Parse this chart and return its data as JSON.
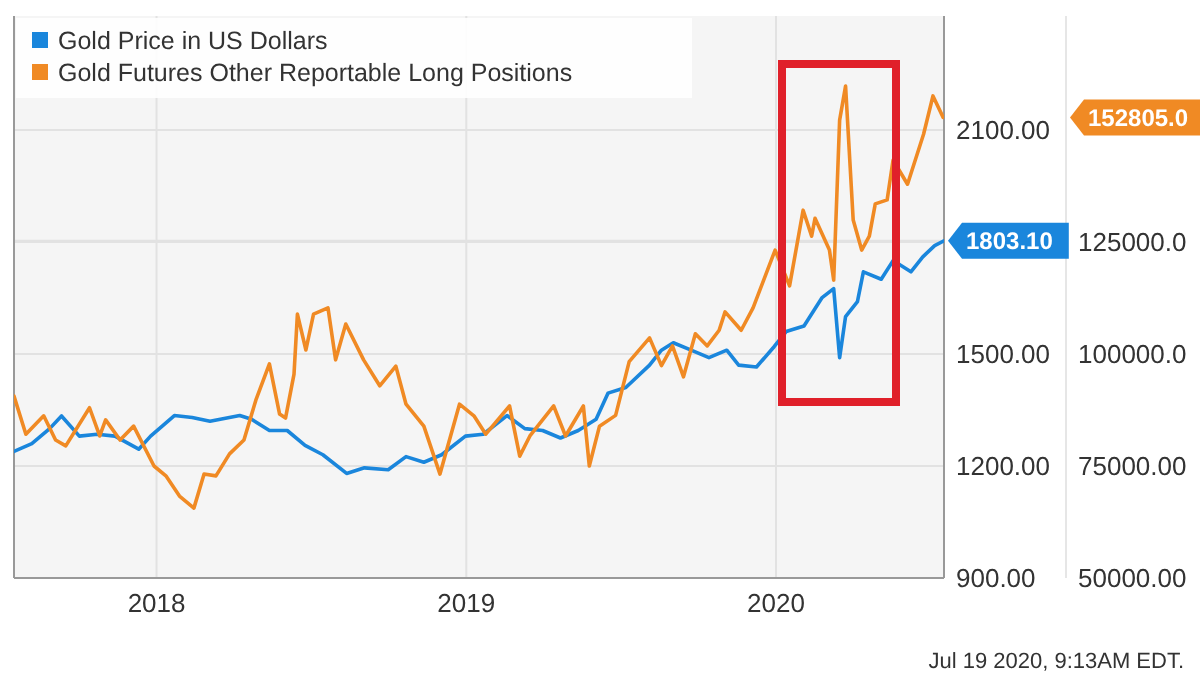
{
  "chart_data": {
    "type": "line",
    "xlim": [
      "2017-07-17",
      "2020-07-17"
    ],
    "xticks": [
      {
        "value": "2018-01-01",
        "label": "2018"
      },
      {
        "value": "2019-01-01",
        "label": "2019"
      },
      {
        "value": "2020-01-01",
        "label": "2020"
      }
    ],
    "ylim": [
      900,
      2405
    ],
    "yticks": [
      {
        "value": 900,
        "label": "900.00"
      },
      {
        "value": 1200,
        "label": "1200.00"
      },
      {
        "value": 1500,
        "label": "1500.00"
      },
      {
        "value": 1800,
        "label": null
      },
      {
        "value": 1803.1,
        "label": "1803.10"
      },
      {
        "value": 2100,
        "label": "2100.00"
      }
    ],
    "y2lim": [
      50000,
      175446
    ],
    "y2ticks": [
      {
        "value": 50000,
        "label": "50000.00"
      },
      {
        "value": 75000,
        "label": "75000.00"
      },
      {
        "value": 100000,
        "label": "100000.0"
      },
      {
        "value": 125000,
        "label": "125000.0"
      },
      {
        "value": 152805,
        "label": "152805.0"
      }
    ],
    "grid": true,
    "legend": "top left",
    "line_style": "solid",
    "marker": "none",
    "annotations": [
      "Jul 19 2020, 9:13AM EDT."
    ],
    "series": [
      {
        "name": "Gold Price in US Dollars",
        "color": "#1a86dc",
        "x": [
          "2017-07-17",
          "2017-08-07",
          "2017-08-28",
          "2017-09-11",
          "2017-10-02",
          "2017-10-23",
          "2017-11-13",
          "2017-12-11",
          "2017-12-25",
          "2018-01-22",
          "2018-02-12",
          "2018-03-05",
          "2018-04-09",
          "2018-04-23",
          "2018-05-14",
          "2018-06-04",
          "2018-06-25",
          "2018-07-16",
          "2018-08-13",
          "2018-09-03",
          "2018-10-01",
          "2018-10-22",
          "2018-11-12",
          "2018-12-03",
          "2018-12-31",
          "2019-01-21",
          "2019-02-18",
          "2019-03-11",
          "2019-04-01",
          "2019-04-22",
          "2019-05-13",
          "2019-06-03",
          "2019-06-17",
          "2019-07-08",
          "2019-08-05",
          "2019-08-19",
          "2019-09-02",
          "2019-09-23",
          "2019-10-14",
          "2019-11-04",
          "2019-11-18",
          "2019-12-09",
          "2019-12-30",
          "2020-01-13",
          "2020-02-03",
          "2020-02-24",
          "2020-03-09",
          "2020-03-16",
          "2020-03-23",
          "2020-04-06",
          "2020-04-13",
          "2020-05-04",
          "2020-05-18",
          "2020-06-01",
          "2020-06-08",
          "2020-06-22",
          "2020-07-06",
          "2020-07-17"
        ],
        "values": [
          1239,
          1260,
          1300,
          1334,
          1280,
          1285,
          1280,
          1245,
          1280,
          1335,
          1330,
          1320,
          1335,
          1325,
          1295,
          1295,
          1255,
          1230,
          1180,
          1195,
          1190,
          1225,
          1210,
          1230,
          1280,
          1285,
          1335,
          1300,
          1295,
          1275,
          1295,
          1325,
          1395,
          1410,
          1470,
          1510,
          1530,
          1510,
          1490,
          1510,
          1470,
          1465,
          1520,
          1560,
          1575,
          1650,
          1675,
          1490,
          1600,
          1640,
          1720,
          1700,
          1750,
          1730,
          1720,
          1760,
          1790,
          1803.1
        ]
      },
      {
        "name": "Gold Futures Other Reportable Long Positions",
        "color": "#f08a24",
        "axis": "y2",
        "x": [
          "2017-07-17",
          "2017-07-31",
          "2017-08-21",
          "2017-09-04",
          "2017-09-16",
          "2017-10-14",
          "2017-10-26",
          "2017-11-02",
          "2017-11-19",
          "2017-12-05",
          "2017-12-29",
          "2018-01-12",
          "2018-01-28",
          "2018-02-14",
          "2018-02-26",
          "2018-03-12",
          "2018-03-28",
          "2018-04-14",
          "2018-04-28",
          "2018-05-14",
          "2018-05-26",
          "2018-06-02",
          "2018-06-12",
          "2018-06-16",
          "2018-06-26",
          "2018-07-05",
          "2018-07-22",
          "2018-07-31",
          "2018-08-12",
          "2018-09-02",
          "2018-09-21",
          "2018-10-10",
          "2018-10-22",
          "2018-11-12",
          "2018-12-01",
          "2018-12-24",
          "2019-01-10",
          "2019-01-24",
          "2019-02-21",
          "2019-03-05",
          "2019-03-17",
          "2019-04-14",
          "2019-04-28",
          "2019-05-19",
          "2019-05-26",
          "2019-06-07",
          "2019-06-26",
          "2019-07-12",
          "2019-08-05",
          "2019-08-19",
          "2019-09-01",
          "2019-09-14",
          "2019-09-28",
          "2019-10-12",
          "2019-10-26",
          "2019-11-02",
          "2019-11-21",
          "2019-12-05",
          "2019-12-31",
          "2020-01-17",
          "2020-02-02",
          "2020-02-12",
          "2020-02-16",
          "2020-03-04",
          "2020-03-09",
          "2020-03-16",
          "2020-03-23",
          "2020-04-01",
          "2020-04-11",
          "2020-04-20",
          "2020-04-27",
          "2020-05-11",
          "2020-05-18",
          "2020-06-04",
          "2020-06-23",
          "2020-07-04",
          "2020-07-16"
        ],
        "values": [
          90600,
          82100,
          86200,
          80800,
          79500,
          88000,
          81700,
          85300,
          80800,
          83900,
          75000,
          72800,
          68300,
          65600,
          73200,
          72800,
          77700,
          80800,
          89700,
          97800,
          86600,
          85700,
          95500,
          108900,
          100900,
          108900,
          110300,
          98700,
          106700,
          98700,
          92900,
          97300,
          88800,
          83900,
          73200,
          88800,
          86200,
          82100,
          88400,
          77200,
          81700,
          88400,
          81700,
          88400,
          75000,
          83900,
          86300,
          98300,
          103600,
          97400,
          101800,
          94900,
          104500,
          101800,
          105300,
          109400,
          105300,
          110300,
          123200,
          115200,
          132100,
          126300,
          130300,
          123200,
          116500,
          152200,
          159800,
          129900,
          123200,
          126300,
          133500,
          134400,
          143300,
          137900,
          149100,
          157600,
          152805
        ]
      }
    ]
  }
}
